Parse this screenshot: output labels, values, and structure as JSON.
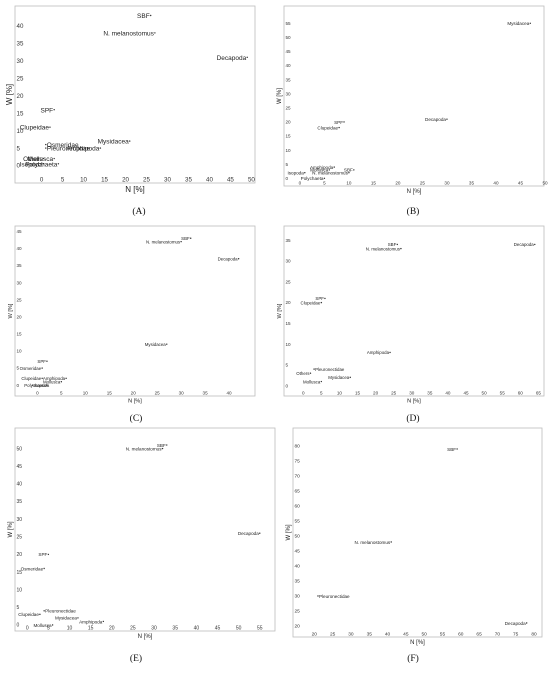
{
  "chart_data": [
    {
      "type": "scatter",
      "panel": "(A)",
      "xlabel": "N [%]",
      "ylabel": "W [%]",
      "xlim": [
        -3,
        53
      ],
      "ylim": [
        -3,
        44
      ],
      "xticks": [
        0,
        5,
        10,
        15,
        20,
        25,
        30,
        35,
        40,
        45,
        50
      ],
      "yticks": [
        0,
        5,
        10,
        15,
        20,
        25,
        30,
        35,
        40
      ],
      "points": [
        {
          "label": "SBF",
          "x": 26,
          "y": 43
        },
        {
          "label": "N. melanostomus",
          "x": 27,
          "y": 38
        },
        {
          "label": "Decapoda",
          "x": 49,
          "y": 31
        },
        {
          "label": "SPF",
          "x": 3,
          "y": 16
        },
        {
          "label": "Clupeidae",
          "x": 2,
          "y": 11
        },
        {
          "label": "Osmeridae",
          "x": 1,
          "y": 6
        },
        {
          "label": "Pleuronectidae",
          "x": 1,
          "y": 5
        },
        {
          "label": "Mysidacea",
          "x": 21,
          "y": 7
        },
        {
          "label": "Amphipoda",
          "x": 14,
          "y": 5
        },
        {
          "label": "Others",
          "x": 0.5,
          "y": 2
        },
        {
          "label": "Mollusca",
          "x": 3,
          "y": 2
        },
        {
          "label": "Isopoda",
          "x": 0.5,
          "y": 0.5
        },
        {
          "label": "Polychaeta",
          "x": 4,
          "y": 0.5
        }
      ]
    },
    {
      "type": "scatter",
      "panel": "(B)",
      "xlabel": "N [%]",
      "ylabel": "W [%]",
      "xlim": [
        -1,
        50
      ],
      "ylim": [
        -2,
        59
      ],
      "xticks": [
        0,
        5,
        10,
        15,
        20,
        25,
        30,
        35,
        40,
        45,
        50
      ],
      "yticks": [
        0,
        5,
        10,
        15,
        20,
        25,
        30,
        35,
        40,
        45,
        50,
        55
      ],
      "points": [
        {
          "label": "Mysidacea",
          "x": 47,
          "y": 55
        },
        {
          "label": "Decapoda",
          "x": 30,
          "y": 21
        },
        {
          "label": "SPF",
          "x": 9,
          "y": 20
        },
        {
          "label": "Clupeidae",
          "x": 8,
          "y": 18
        },
        {
          "label": "Amphipoda",
          "x": 7,
          "y": 4
        },
        {
          "label": "Mollusca",
          "x": 6,
          "y": 3
        },
        {
          "label": "SBF",
          "x": 11,
          "y": 3
        },
        {
          "label": "Isopoda",
          "x": 1,
          "y": 2
        },
        {
          "label": "N. melanostomus",
          "x": 10,
          "y": 2
        },
        {
          "label": "Polychaeta",
          "x": 5,
          "y": 0
        }
      ]
    },
    {
      "type": "scatter",
      "panel": "(C)",
      "xlabel": "N [%]",
      "ylabel": "W [%]",
      "xlim": [
        -3,
        45
      ],
      "ylim": [
        -2,
        46
      ],
      "xticks": [
        0,
        5,
        10,
        15,
        20,
        25,
        30,
        35,
        40
      ],
      "yticks": [
        0,
        5,
        10,
        15,
        20,
        25,
        30,
        35,
        40,
        45
      ],
      "points": [
        {
          "label": "SBF",
          "x": 32,
          "y": 43
        },
        {
          "label": "N. melanostomus",
          "x": 30,
          "y": 42
        },
        {
          "label": "Decapoda",
          "x": 42,
          "y": 37
        },
        {
          "label": "Mysidacea",
          "x": 27,
          "y": 12
        },
        {
          "label": "SPF",
          "x": 2,
          "y": 7
        },
        {
          "label": "Osmeridae",
          "x": 1,
          "y": 5
        },
        {
          "label": "Clupeidae",
          "x": 1,
          "y": 2
        },
        {
          "label": "Amphipoda",
          "x": 6,
          "y": 2
        },
        {
          "label": "Mollusca",
          "x": 5,
          "y": 1
        },
        {
          "label": "Isopoda",
          "x": -1,
          "y": 0
        },
        {
          "label": "Polychaeta",
          "x": 2,
          "y": 0
        }
      ]
    },
    {
      "type": "scatter",
      "panel": "(D)",
      "xlabel": "N [%]",
      "ylabel": "W [%]",
      "xlim": [
        -2,
        66
      ],
      "ylim": [
        -2,
        37
      ],
      "xticks": [
        0,
        5,
        10,
        15,
        20,
        25,
        30,
        35,
        40,
        45,
        50,
        55,
        60,
        65
      ],
      "yticks": [
        0,
        5,
        10,
        15,
        20,
        25,
        30,
        35
      ],
      "points": [
        {
          "label": "SBF",
          "x": 26,
          "y": 34
        },
        {
          "label": "N. melanostomus",
          "x": 27,
          "y": 33
        },
        {
          "label": "Decapoda",
          "x": 64,
          "y": 34
        },
        {
          "label": "SPF",
          "x": 6,
          "y": 21
        },
        {
          "label": "Clupeidae",
          "x": 5,
          "y": 20
        },
        {
          "label": "Amphipoda",
          "x": 24,
          "y": 8
        },
        {
          "label": "Pleuronectidae",
          "x": 3,
          "y": 4
        },
        {
          "label": "Others",
          "x": 2,
          "y": 3
        },
        {
          "label": "Mysidacea",
          "x": 13,
          "y": 2
        },
        {
          "label": "Mollusca",
          "x": 5,
          "y": 1
        }
      ]
    },
    {
      "type": "scatter",
      "panel": "(E)",
      "xlabel": "N [%]",
      "ylabel": "W [%]",
      "xlim": [
        -1,
        56
      ],
      "ylim": [
        -2,
        53
      ],
      "xticks": [
        0,
        5,
        10,
        15,
        20,
        25,
        30,
        35,
        40,
        45,
        50,
        55
      ],
      "yticks": [
        0,
        5,
        10,
        15,
        20,
        25,
        30,
        35,
        40,
        45,
        50
      ],
      "points": [
        {
          "label": "SBF",
          "x": 33,
          "y": 51
        },
        {
          "label": "N. melanostomus",
          "x": 32,
          "y": 50
        },
        {
          "label": "Decapoda",
          "x": 55,
          "y": 26
        },
        {
          "label": "SPF",
          "x": 5,
          "y": 20
        },
        {
          "label": "Osmeridae",
          "x": 4,
          "y": 16
        },
        {
          "label": "Pleuronectidae",
          "x": 4,
          "y": 4
        },
        {
          "label": "Clupeidae",
          "x": 3,
          "y": 3
        },
        {
          "label": "Mysidacea",
          "x": 12,
          "y": 2
        },
        {
          "label": "Amphipoda",
          "x": 18,
          "y": 1
        },
        {
          "label": "Mollusca",
          "x": 6,
          "y": 0
        }
      ]
    },
    {
      "type": "scatter",
      "panel": "(F)",
      "xlabel": "N [%]",
      "ylabel": "W [%]",
      "xlim": [
        18,
        80
      ],
      "ylim": [
        18,
        83
      ],
      "xticks": [
        20,
        25,
        30,
        35,
        40,
        45,
        50,
        55,
        60,
        65,
        70,
        75,
        80
      ],
      "yticks": [
        20,
        25,
        30,
        35,
        40,
        45,
        50,
        55,
        60,
        65,
        70,
        75,
        80
      ],
      "points": [
        {
          "label": "SBF",
          "x": 59,
          "y": 79
        },
        {
          "label": "N. melanostomus",
          "x": 41,
          "y": 48
        },
        {
          "label": "Pleuronectidae",
          "x": 21,
          "y": 30
        },
        {
          "label": "Decapoda",
          "x": 78,
          "y": 21
        }
      ]
    }
  ]
}
